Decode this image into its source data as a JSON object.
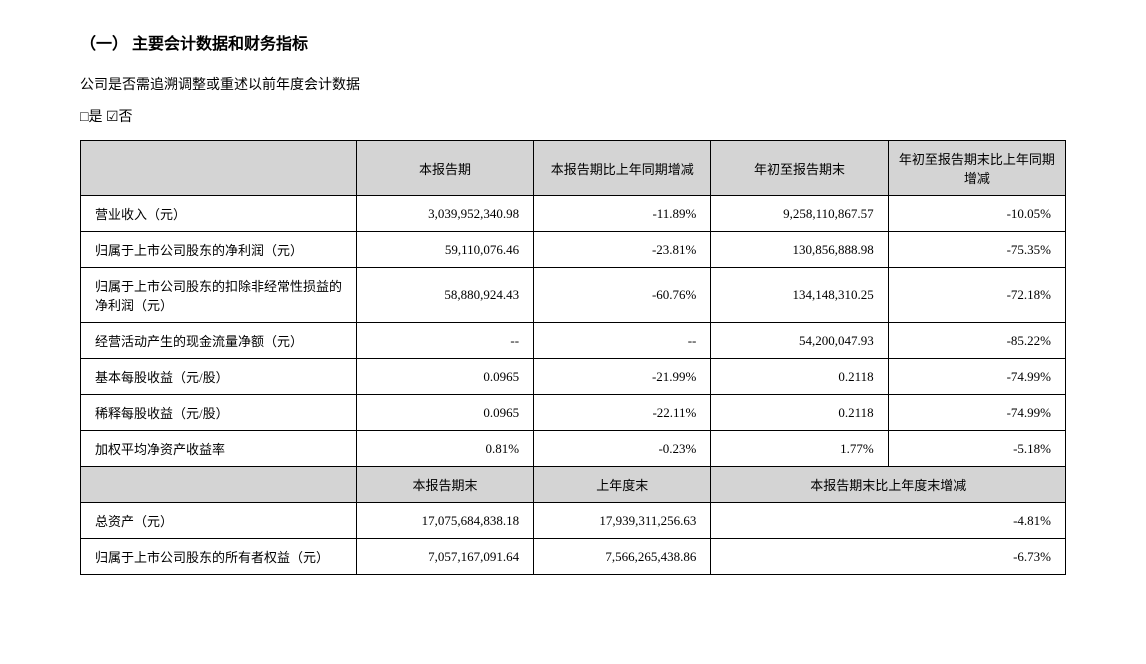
{
  "heading": "（一） 主要会计数据和财务指标",
  "desc_line": "公司是否需追溯调整或重述以前年度会计数据",
  "checkbox_yes_symbol": "□",
  "checkbox_yes_label": "是",
  "checkbox_no_symbol": "☑",
  "checkbox_no_label": "否",
  "table": {
    "header1": [
      "",
      "本报告期",
      "本报告期比上年同期增减",
      "年初至报告期末",
      "年初至报告期末比上年同期增减"
    ],
    "rows1": [
      {
        "label": "营业收入（元）",
        "c1": "3,039,952,340.98",
        "c2": "-11.89%",
        "c3": "9,258,110,867.57",
        "c4": "-10.05%"
      },
      {
        "label": "归属于上市公司股东的净利润（元）",
        "c1": "59,110,076.46",
        "c2": "-23.81%",
        "c3": "130,856,888.98",
        "c4": "-75.35%"
      },
      {
        "label": "归属于上市公司股东的扣除非经常性损益的净利润（元）",
        "c1": "58,880,924.43",
        "c2": "-60.76%",
        "c3": "134,148,310.25",
        "c4": "-72.18%"
      },
      {
        "label": "经营活动产生的现金流量净额（元）",
        "c1": "--",
        "c2": "--",
        "c3": "54,200,047.93",
        "c4": "-85.22%"
      },
      {
        "label": "基本每股收益（元/股）",
        "c1": "0.0965",
        "c2": "-21.99%",
        "c3": "0.2118",
        "c4": "-74.99%"
      },
      {
        "label": "稀释每股收益（元/股）",
        "c1": "0.0965",
        "c2": "-22.11%",
        "c3": "0.2118",
        "c4": "-74.99%"
      },
      {
        "label": "加权平均净资产收益率",
        "c1": "0.81%",
        "c2": "-0.23%",
        "c3": "1.77%",
        "c4": "-5.18%"
      }
    ],
    "header2": [
      "",
      "本报告期末",
      "上年度末",
      "本报告期末比上年度末增减"
    ],
    "rows2": [
      {
        "label": "总资产（元）",
        "c1": "17,075,684,838.18",
        "c2": "17,939,311,256.63",
        "c4": "-4.81%"
      },
      {
        "label": "归属于上市公司股东的所有者权益（元）",
        "c1": "7,057,167,091.64",
        "c2": "7,566,265,438.86",
        "c4": "-6.73%"
      }
    ]
  },
  "style": {
    "header_bg": "#d4d4d4",
    "border_color": "#000000",
    "body_bg": "#ffffff",
    "text_color": "#000000",
    "font_family": "SimSun",
    "title_fontsize": 16,
    "cell_fontsize": 13
  }
}
